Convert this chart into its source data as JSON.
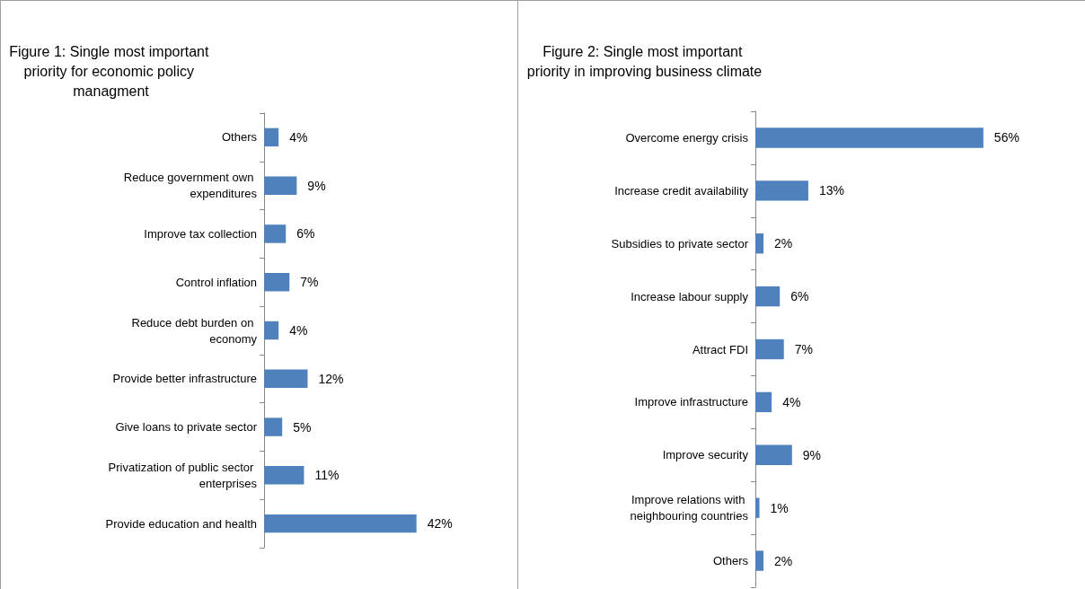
{
  "chart_data": [
    {
      "type": "bar",
      "orientation": "horizontal",
      "title": "Figure 1: Single most important priority for economic policy managment",
      "categories": [
        "Others",
        "Reduce government own expenditures",
        "Improve tax collection",
        "Control inflation",
        "Reduce debt burden on economy",
        "Provide better infrastructure",
        "Give loans to private sector",
        "Privatization of public sector enterprises",
        "Provide education and health"
      ],
      "values": [
        4,
        9,
        6,
        7,
        4,
        12,
        5,
        11,
        42
      ],
      "value_labels": [
        "4%",
        "9%",
        "6%",
        "7%",
        "4%",
        "12%",
        "5%",
        "11%",
        "42%"
      ],
      "color": "#4f81bd",
      "grid": false
    },
    {
      "type": "bar",
      "orientation": "horizontal",
      "title": "Figure 2: Single most important priority in improving business climate",
      "categories": [
        "Overcome energy crisis",
        "Increase credit availability",
        "Subsidies to private sector",
        "Increase labour supply",
        "Attract FDI",
        "Improve infrastructure",
        "Improve security",
        "Improve relations with neighbouring countries",
        "Others"
      ],
      "values": [
        56,
        13,
        2,
        6,
        7,
        4,
        9,
        1,
        2
      ],
      "value_labels": [
        "56%",
        "13%",
        "2%",
        "6%",
        "7%",
        "4%",
        "9%",
        "1%",
        "2%"
      ],
      "color": "#4f81bd",
      "grid": false
    }
  ]
}
